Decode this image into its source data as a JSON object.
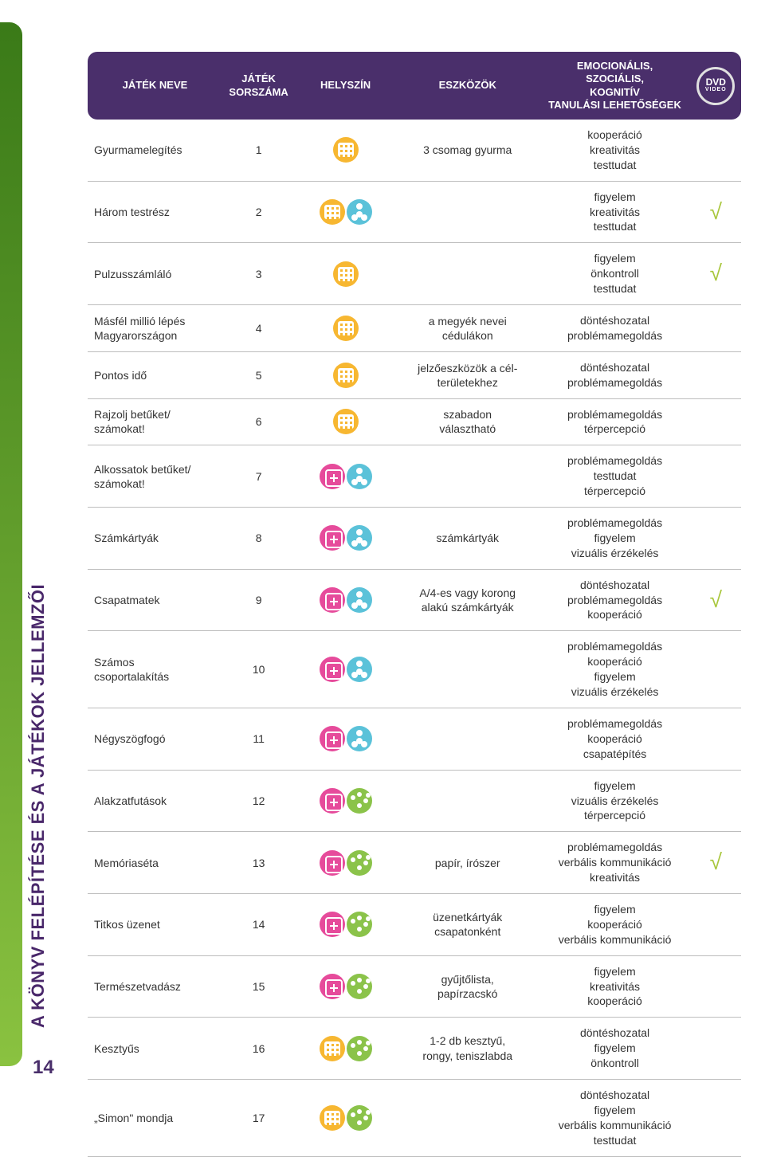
{
  "side_title": "A KÖNYV FELÉPÍTÉSE ÉS A JÁTÉKOK JELLEMZŐI",
  "page_number": "14",
  "dvd_label": "DVD",
  "dvd_sub": "VIDEO",
  "headers": {
    "name": "JÁTÉK NEVE",
    "num": "JÁTÉK\nSORSZÁMA",
    "loc": "HELYSZÍN",
    "tool": "ESZKÖZÖK",
    "emo": "EMOCIONÁLIS,\nSZOCIÁLIS,\nKOGNITÍV\nTANULÁSI LEHETŐSÉGEK",
    "dvd": ""
  },
  "rows": [
    {
      "name": "Gyurmamelegítés",
      "num": "1",
      "icons": [
        "grid"
      ],
      "tool": "3 csomag gyurma",
      "emo": "kooperáció\nkreativitás\ntesttudat",
      "check": false
    },
    {
      "name": "Három testrész",
      "num": "2",
      "icons": [
        "grid",
        "body"
      ],
      "tool": "",
      "emo": "figyelem\nkreativitás\ntesttudat",
      "check": true
    },
    {
      "name": "Pulzusszámláló",
      "num": "3",
      "icons": [
        "grid"
      ],
      "tool": "",
      "emo": "figyelem\nönkontroll\ntesttudat",
      "check": true
    },
    {
      "name": "Másfél millió lépés\nMagyarországon",
      "num": "4",
      "icons": [
        "grid"
      ],
      "tool": "a megyék nevei\ncédulákon",
      "emo": "döntéshozatal\nproblémamegoldás",
      "check": false
    },
    {
      "name": "Pontos idő",
      "num": "5",
      "icons": [
        "grid"
      ],
      "tool": "jelzőeszközök a cél-\nterületekhez",
      "emo": "döntéshozatal\nproblémamegoldás",
      "check": false
    },
    {
      "name": "Rajzolj betűket/\nszámokat!",
      "num": "6",
      "icons": [
        "grid"
      ],
      "tool": "szabadon\nválasztható",
      "emo": "problémamegoldás\ntérpercepció",
      "check": false
    },
    {
      "name": "Alkossatok betűket/\nszámokat!",
      "num": "7",
      "icons": [
        "pink",
        "body"
      ],
      "tool": "",
      "emo": "problémamegoldás\ntesttudat\ntérpercepció",
      "check": false
    },
    {
      "name": "Számkártyák",
      "num": "8",
      "icons": [
        "pink",
        "body"
      ],
      "tool": "számkártyák",
      "emo": "problémamegoldás\nfigyelem\nvizuális érzékelés",
      "check": false
    },
    {
      "name": "Csapatmatek",
      "num": "9",
      "icons": [
        "pink",
        "body"
      ],
      "tool": "A/4-es vagy korong\nalakú számkártyák",
      "emo": "döntéshozatal\nproblémamegoldás\nkooperáció",
      "check": true
    },
    {
      "name": "Számos\ncsoportalakítás",
      "num": "10",
      "icons": [
        "pink",
        "body"
      ],
      "tool": "",
      "emo": "problémamegoldás\nkooperáció\nfigyelem\nvizuális érzékelés",
      "check": false
    },
    {
      "name": "Négyszögfogó",
      "num": "11",
      "icons": [
        "pink",
        "body"
      ],
      "tool": "",
      "emo": "problémamegoldás\nkooperáció\ncsapatépítés",
      "check": false
    },
    {
      "name": "Alakzatfutások",
      "num": "12",
      "icons": [
        "pink",
        "green"
      ],
      "tool": "",
      "emo": "figyelem\nvizuális érzékelés\ntérpercepció",
      "check": false
    },
    {
      "name": "Memóriaséta",
      "num": "13",
      "icons": [
        "pink",
        "green"
      ],
      "tool": "papír, írószer",
      "emo": "problémamegoldás\nverbális kommunikáció\nkreativitás",
      "check": true
    },
    {
      "name": "Titkos üzenet",
      "num": "14",
      "icons": [
        "pink",
        "green"
      ],
      "tool": "üzenetkártyák\ncsapatonként",
      "emo": "figyelem\nkooperáció\nverbális kommunikáció",
      "check": false
    },
    {
      "name": "Természetvadász",
      "num": "15",
      "icons": [
        "pink",
        "green"
      ],
      "tool": "gyűjtőlista,\npapírzacskó",
      "emo": "figyelem\nkreativitás\nkooperáció",
      "check": false
    },
    {
      "name": "Kesztyűs",
      "num": "16",
      "icons": [
        "grid",
        "green"
      ],
      "tool": "1-2 db kesztyű,\nrongy, teniszlabda",
      "emo": "döntéshozatal\nfigyelem\nönkontroll",
      "check": false
    },
    {
      "name": "„Simon\" mondja",
      "num": "17",
      "icons": [
        "grid",
        "green"
      ],
      "tool": "",
      "emo": "döntéshozatal\nfigyelem\nverbális kommunikáció\ntesttudat",
      "check": false
    }
  ]
}
